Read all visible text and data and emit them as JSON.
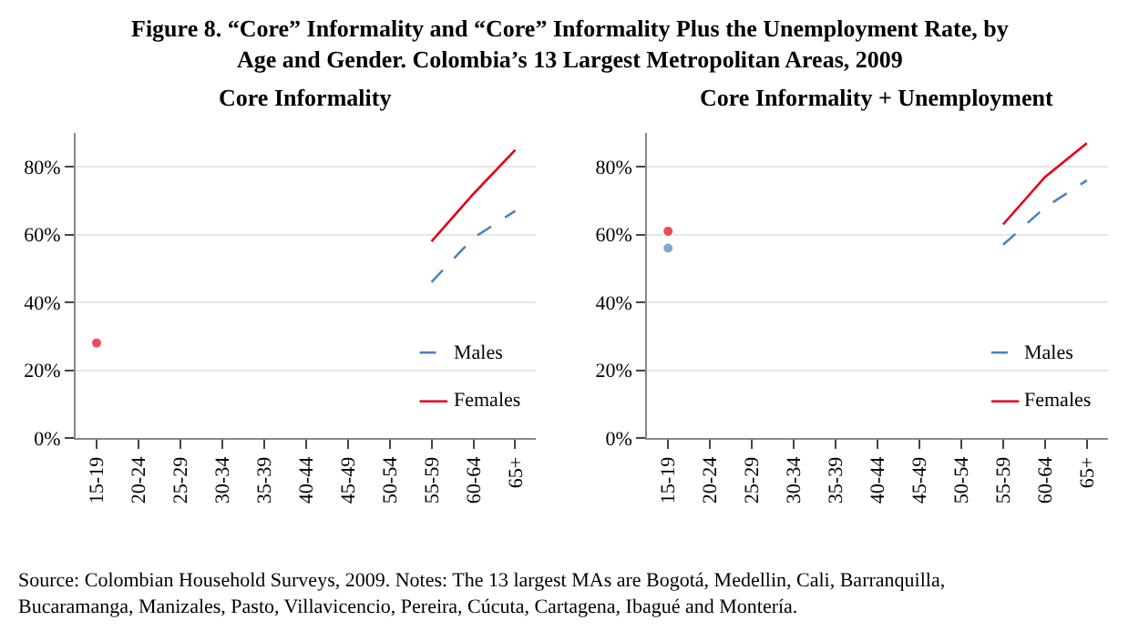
{
  "chart_data": [
    {
      "type": "line",
      "title": "Core Informality",
      "categories": [
        "15-19",
        "20-24",
        "25-29",
        "30-34",
        "35-39",
        "40-44",
        "45-49",
        "50-54",
        "55-59",
        "60-64",
        "65+"
      ],
      "series": [
        {
          "name": "Males",
          "color": "#4f81bd",
          "line_style": "dashed",
          "values": [
            null,
            null,
            null,
            null,
            null,
            null,
            null,
            null,
            46,
            59,
            67
          ]
        },
        {
          "name": "Females",
          "color": "#e3001b",
          "line_style": "solid",
          "values": [
            28,
            null,
            null,
            null,
            null,
            null,
            null,
            null,
            58,
            72,
            85
          ]
        }
      ],
      "ylim": [
        0,
        90
      ],
      "yticks": [
        {
          "value": 0,
          "label": "0%"
        },
        {
          "value": 20,
          "label": "20%"
        },
        {
          "value": 40,
          "label": "40%"
        },
        {
          "value": 60,
          "label": "60%"
        },
        {
          "value": 80,
          "label": "80%"
        }
      ],
      "grid": "y",
      "legend": "bottom right",
      "annotations": [
        "Figure 8. “Core” Informality and “Core” Informality Plus the Unemployment Rate, by Age and Gender. Colombia’s 13 Largest Metropolitan Areas, 2009"
      ]
    },
    {
      "type": "line",
      "title": "Core Informality + Unemployment",
      "categories": [
        "15-19",
        "20-24",
        "25-29",
        "30-34",
        "35-39",
        "40-44",
        "45-49",
        "50-54",
        "55-59",
        "60-64",
        "65+"
      ],
      "series": [
        {
          "name": "Males",
          "color": "#4f81bd",
          "line_style": "dashed",
          "values": [
            56,
            null,
            null,
            null,
            null,
            null,
            null,
            null,
            57,
            68,
            76
          ]
        },
        {
          "name": "Females",
          "color": "#e3001b",
          "line_style": "solid",
          "values": [
            61,
            null,
            null,
            null,
            null,
            null,
            null,
            null,
            63,
            77,
            87
          ]
        }
      ],
      "ylim": [
        0,
        90
      ],
      "yticks": [
        {
          "value": 0,
          "label": "0%"
        },
        {
          "value": 20,
          "label": "20%"
        },
        {
          "value": 40,
          "label": "40%"
        },
        {
          "value": 60,
          "label": "60%"
        },
        {
          "value": 80,
          "label": "80%"
        }
      ],
      "grid": "y",
      "legend": "bottom right",
      "annotations": [
        "Source: Colombian Household Surveys, 2009. Notes: The 13 largest MAs are Bogotá, Medellin, Cali, Barranquilla, Bucaramanga, Manizales, Pasto, Villavicencio, Pereira, Cúcuta, Cartagena, Ibagué and Montería."
      ]
    }
  ]
}
